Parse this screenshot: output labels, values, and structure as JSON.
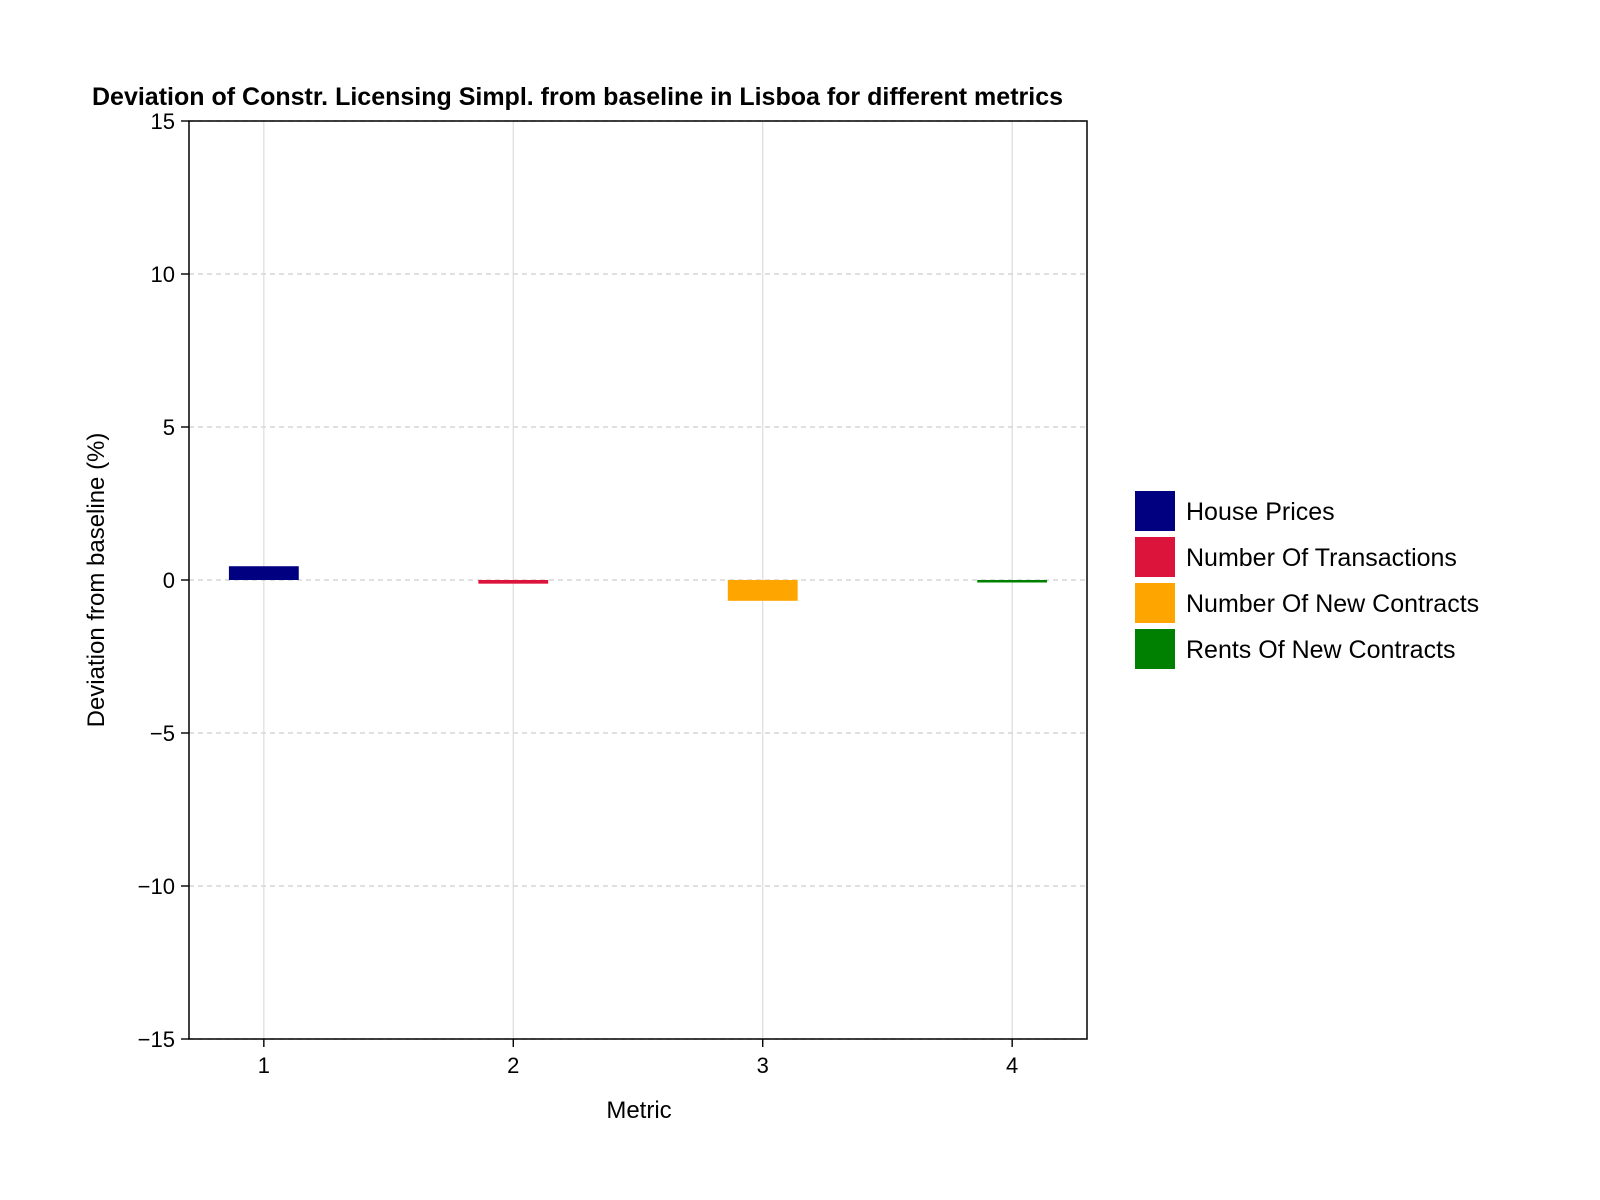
{
  "chart_data": {
    "type": "bar",
    "title": "Deviation of Constr. Licensing Simpl. from baseline in Lisboa for different metrics",
    "xlabel": "Metric",
    "ylabel": "Deviation from baseline (%)",
    "categories": [
      "1",
      "2",
      "3",
      "4"
    ],
    "series": [
      {
        "name": "House Prices",
        "x": 1,
        "value": 0.45,
        "color": "#000080"
      },
      {
        "name": "Number Of Transactions",
        "x": 2,
        "value": -0.12,
        "color": "#dc143c"
      },
      {
        "name": "Number Of New Contracts",
        "x": 3,
        "value": -0.68,
        "color": "#ffa500"
      },
      {
        "name": "Rents Of New Contracts",
        "x": 4,
        "value": -0.05,
        "color": "#008000"
      }
    ],
    "ylim": [
      -15,
      15
    ],
    "xlim": [
      0.7,
      4.3
    ],
    "yticks": [
      -15,
      -10,
      -5,
      0,
      5,
      10,
      15
    ],
    "ytick_labels": [
      "−15",
      "−10",
      "−5",
      "0",
      "5",
      "10",
      "15"
    ],
    "xticks": [
      1,
      2,
      3,
      4
    ],
    "xtick_labels": [
      "1",
      "2",
      "3",
      "4"
    ],
    "grid": true,
    "legend_position": "right"
  }
}
